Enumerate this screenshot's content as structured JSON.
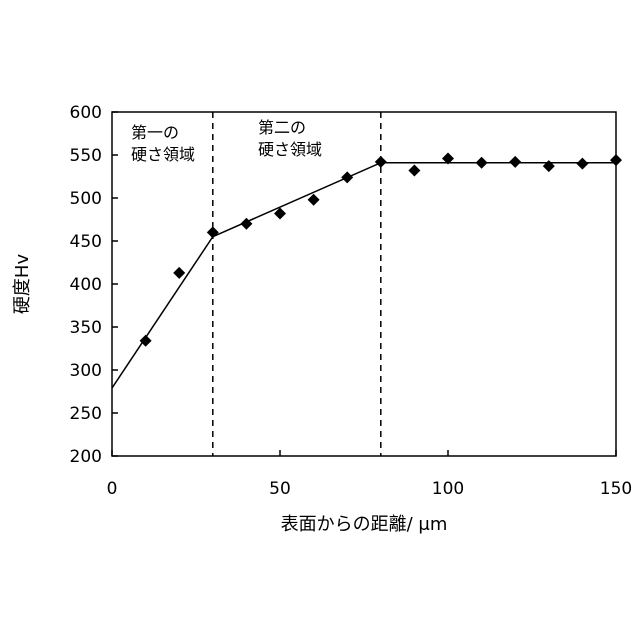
{
  "chart_data": {
    "type": "scatter",
    "xlabel": "表面からの距離/ μm",
    "ylabel": "硬度Hv",
    "xlim": [
      0,
      150
    ],
    "ylim": [
      200,
      600
    ],
    "x_ticks": [
      0,
      50,
      100,
      150
    ],
    "y_ticks": [
      200,
      250,
      300,
      350,
      400,
      450,
      500,
      550,
      600
    ],
    "grid": false,
    "series": [
      {
        "marker": "diamond",
        "color": "#000000",
        "x": [
          10,
          20,
          30,
          40,
          50,
          60,
          70,
          80,
          90,
          100,
          110,
          120,
          130,
          140,
          150
        ],
        "y": [
          334,
          413,
          460,
          470,
          482,
          498,
          524,
          542,
          532,
          546,
          541,
          542,
          537,
          540,
          544
        ]
      }
    ],
    "trend_line": {
      "x": [
        0,
        30,
        80,
        150
      ],
      "y": [
        279,
        455,
        541,
        541
      ]
    },
    "dividers": [
      30,
      80
    ],
    "regions": [
      {
        "lines": [
          "第一の",
          "硬さ領域"
        ]
      },
      {
        "lines": [
          "第二の",
          "硬さ領域"
        ]
      }
    ]
  }
}
